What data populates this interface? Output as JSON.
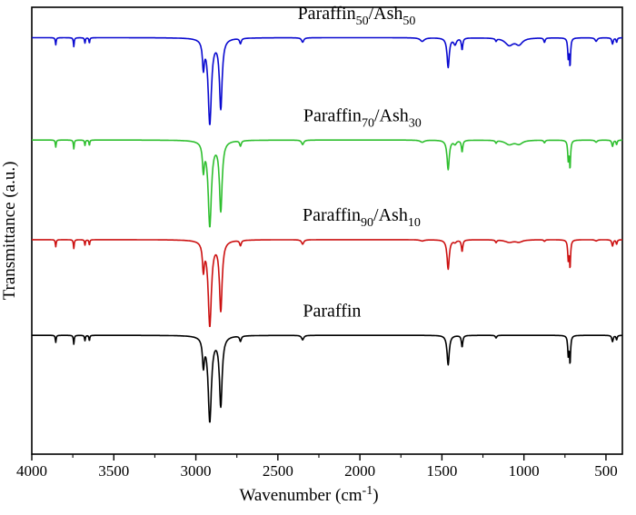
{
  "chart_data": {
    "type": "line",
    "title": "",
    "xlabel_plain": "Wavenumber (cm-1)",
    "xlabel_segments": [
      [
        "Wavenumber (cm",
        ""
      ],
      [
        "-1",
        "sup"
      ],
      [
        ")",
        ""
      ]
    ],
    "ylabel": "Transmittance (a.u.)",
    "x_axis": {
      "min": 4000,
      "max": 400,
      "reversed": true,
      "major_ticks": [
        4000,
        3500,
        3000,
        2500,
        2000,
        1500,
        1000,
        500
      ],
      "minor_ticks": [
        3750,
        3250,
        2750,
        2250,
        1750,
        1250,
        750
      ]
    },
    "y_axis": {
      "min": 0,
      "max": 1,
      "tick_labels": [],
      "note": "arbitrary units, no tick labels shown"
    },
    "grid": false,
    "legend": "labels-above-curves",
    "axis_color": "#000000",
    "paraffin_peaks": [
      [
        3854,
        0.016,
        3
      ],
      [
        3744,
        0.02,
        3
      ],
      [
        3676,
        0.012,
        3
      ],
      [
        3649,
        0.012,
        3
      ],
      [
        2954,
        0.06,
        7
      ],
      [
        2915,
        0.19,
        12
      ],
      [
        2848,
        0.155,
        10
      ],
      [
        2728,
        0.012,
        6
      ],
      [
        2349,
        0.01,
        8
      ],
      [
        1462,
        0.066,
        8
      ],
      [
        1377,
        0.026,
        5
      ],
      [
        1170,
        0.006,
        5
      ],
      [
        730,
        0.042,
        4
      ],
      [
        719,
        0.06,
        4
      ],
      [
        460,
        0.014,
        5
      ],
      [
        435,
        0.01,
        4
      ]
    ],
    "ash_peaks": [
      [
        1620,
        0.008,
        15
      ],
      [
        1420,
        0.014,
        10
      ],
      [
        1090,
        0.016,
        30
      ],
      [
        1030,
        0.014,
        25
      ],
      [
        875,
        0.01,
        5
      ],
      [
        560,
        0.008,
        8
      ]
    ],
    "series": [
      {
        "id": "paraffin50-ash50",
        "name": "Paraffin50/Ash50",
        "label_segments": [
          [
            "Paraffin",
            ""
          ],
          [
            "50",
            "sub"
          ],
          [
            "/Ash",
            ""
          ],
          [
            "50",
            "sub"
          ]
        ],
        "color": "#0a0ad0",
        "baseline": 0.932,
        "ash_scale": 1.0,
        "label_x": 2020,
        "label_offset": 0.042
      },
      {
        "id": "paraffin70-ash30",
        "name": "Paraffin70/Ash30",
        "label_segments": [
          [
            "Paraffin",
            ""
          ],
          [
            "70",
            "sub"
          ],
          [
            "/Ash",
            ""
          ],
          [
            "30",
            "sub"
          ]
        ],
        "color": "#2fbf2f",
        "baseline": 0.703,
        "ash_scale": 0.6,
        "label_x": 1985,
        "label_offset": 0.042
      },
      {
        "id": "paraffin90-ash10",
        "name": "Paraffin90/Ash10",
        "label_segments": [
          [
            "Paraffin",
            ""
          ],
          [
            "90",
            "sub"
          ],
          [
            "/Ash",
            ""
          ],
          [
            "10",
            "sub"
          ]
        ],
        "color": "#cc1111",
        "baseline": 0.48,
        "ash_scale": 0.35,
        "label_x": 1990,
        "label_offset": 0.042
      },
      {
        "id": "paraffin",
        "name": "Paraffin",
        "label_segments": [
          [
            "Paraffin",
            ""
          ]
        ],
        "color": "#000000",
        "baseline": 0.266,
        "ash_scale": 0.0,
        "label_x": 2170,
        "label_offset": 0.042
      }
    ]
  }
}
